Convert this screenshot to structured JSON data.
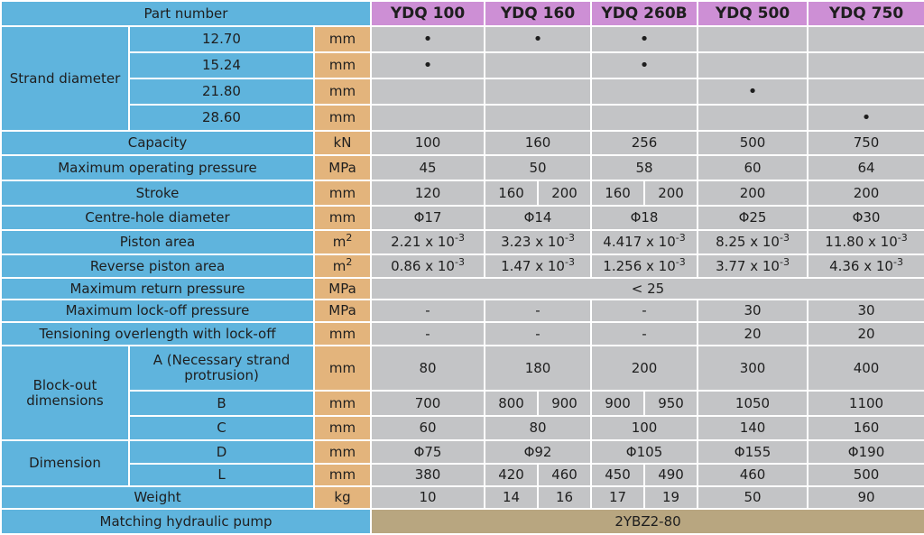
{
  "colors": {
    "label_bg": "#5fb4dd",
    "unit_bg": "#e3b47c",
    "value_bg": "#c3c4c6",
    "model_header_bg": "#cd8fd5",
    "pump_value_bg": "#b8a680"
  },
  "header": {
    "part_number": "Part number",
    "models": [
      "YDQ 100",
      "YDQ 160",
      "YDQ 260B",
      "YDQ 500",
      "YDQ 750"
    ]
  },
  "strand": {
    "label": "Strand diameter",
    "bullet": "•",
    "rows": [
      {
        "size": "12.70",
        "unit": "mm"
      },
      {
        "size": "15.24",
        "unit": "mm"
      },
      {
        "size": "21.80",
        "unit": "mm"
      },
      {
        "size": "28.60",
        "unit": "mm"
      }
    ]
  },
  "capacity": {
    "label": "Capacity",
    "unit": "kN",
    "values": [
      "100",
      "160",
      "256",
      "500",
      "750"
    ]
  },
  "pressure": {
    "label": "Maximum operating pressure",
    "unit": "MPa",
    "values": [
      "45",
      "50",
      "58",
      "60",
      "64"
    ]
  },
  "stroke": {
    "label": "Stroke",
    "unit": "mm",
    "v100": "120",
    "v160a": "160",
    "v160b": "200",
    "v260a": "160",
    "v260b": "200",
    "v500": "200",
    "v750": "200"
  },
  "centre": {
    "label": "Centre-hole diameter",
    "unit": "mm",
    "values": [
      "Φ17",
      "Φ14",
      "Φ18",
      "Φ25",
      "Φ30"
    ]
  },
  "piston": {
    "label": "Piston area",
    "unit": "m",
    "unit_sup": "2",
    "values": [
      {
        "base": "2.21 x 10",
        "exp": "-3"
      },
      {
        "base": "3.23 x 10",
        "exp": "-3"
      },
      {
        "base": "4.417 x 10",
        "exp": "-3"
      },
      {
        "base": "8.25 x 10",
        "exp": "-3"
      },
      {
        "base": "11.80 x 10",
        "exp": "-3"
      }
    ]
  },
  "reverse": {
    "label": "Reverse piston area",
    "unit": "m",
    "unit_sup": "2",
    "values": [
      {
        "base": "0.86 x 10",
        "exp": "-3"
      },
      {
        "base": "1.47 x 10",
        "exp": "-3"
      },
      {
        "base": "1.256 x 10",
        "exp": "-3"
      },
      {
        "base": "3.77 x 10",
        "exp": "-3"
      },
      {
        "base": "4.36 x 10",
        "exp": "-3"
      }
    ]
  },
  "return_pressure": {
    "label": "Maximum return pressure",
    "unit": "MPa",
    "value": "< 25"
  },
  "lockoff": {
    "label": "Maximum lock-off pressure",
    "unit": "MPa",
    "values": [
      "-",
      "-",
      "-",
      "30",
      "30"
    ]
  },
  "overlength": {
    "label": "Tensioning overlength with lock-off",
    "unit": "mm",
    "values": [
      "-",
      "-",
      "-",
      "20",
      "20"
    ]
  },
  "blockout": {
    "label_line1": "Block-out",
    "label_line2": "dimensions",
    "a": {
      "line1": "A (Necessary strand",
      "line2": "protrusion)",
      "unit": "mm",
      "values": [
        "80",
        "180",
        "200",
        "300",
        "400"
      ]
    },
    "b": {
      "label": "B",
      "unit": "mm",
      "v100": "700",
      "v160a": "800",
      "v160b": "900",
      "v260a": "900",
      "v260b": "950",
      "v500": "1050",
      "v750": "1100"
    },
    "c": {
      "label": "C",
      "unit": "mm",
      "values": [
        "60",
        "80",
        "100",
        "140",
        "160"
      ]
    }
  },
  "dimension": {
    "label": "Dimension",
    "d": {
      "label": "D",
      "unit": "mm",
      "values": [
        "Φ75",
        "Φ92",
        "Φ105",
        "Φ155",
        "Φ190"
      ]
    },
    "l": {
      "label": "L",
      "unit": "mm",
      "v100": "380",
      "v160a": "420",
      "v160b": "460",
      "v260a": "450",
      "v260b": "490",
      "v500": "460",
      "v750": "500"
    }
  },
  "weight": {
    "label": "Weight",
    "unit": "kg",
    "v100": "10",
    "v160a": "14",
    "v160b": "16",
    "v260a": "17",
    "v260b": "19",
    "v500": "50",
    "v750": "90"
  },
  "pump": {
    "label": "Matching hydraulic pump",
    "value": "2YBZ2-80"
  }
}
